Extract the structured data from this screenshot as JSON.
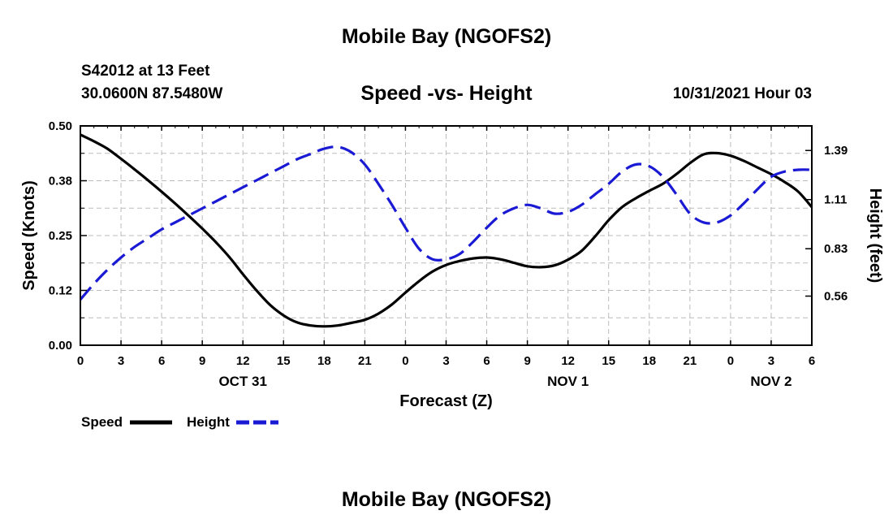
{
  "page": {
    "title": "Mobile Bay (NGOFS2)",
    "station": "S42012 at 13 Feet",
    "coords": "30.0600N  87.5480W",
    "subtitle": "Speed -vs- Height",
    "datetime": "10/31/2021 Hour 03",
    "footer_title": "Mobile Bay (NGOFS2)"
  },
  "legend": {
    "speed_label": "Speed",
    "height_label": "Height"
  },
  "chart_data": {
    "type": "line",
    "xlabel": "Forecast (Z)",
    "ylabel_left": "Speed (Knots)",
    "ylabel_right": "Height (feet)",
    "x_range_hours": [
      0,
      54
    ],
    "x_ticks": [
      {
        "h": 0,
        "label": "0"
      },
      {
        "h": 3,
        "label": "3"
      },
      {
        "h": 6,
        "label": "6"
      },
      {
        "h": 9,
        "label": "9"
      },
      {
        "h": 12,
        "label": "12"
      },
      {
        "h": 15,
        "label": "15"
      },
      {
        "h": 18,
        "label": "18"
      },
      {
        "h": 21,
        "label": "21"
      },
      {
        "h": 24,
        "label": "0"
      },
      {
        "h": 27,
        "label": "3"
      },
      {
        "h": 30,
        "label": "6"
      },
      {
        "h": 33,
        "label": "9"
      },
      {
        "h": 36,
        "label": "12"
      },
      {
        "h": 39,
        "label": "15"
      },
      {
        "h": 42,
        "label": "18"
      },
      {
        "h": 45,
        "label": "21"
      },
      {
        "h": 48,
        "label": "0"
      },
      {
        "h": 51,
        "label": "3"
      },
      {
        "h": 54,
        "label": "6"
      }
    ],
    "date_labels": [
      {
        "h": 12,
        "label": "OCT 31"
      },
      {
        "h": 36,
        "label": "NOV 1"
      },
      {
        "h": 51,
        "label": "NOV 2"
      }
    ],
    "y_left": {
      "min": 0.0,
      "max": 0.5,
      "ticks": [
        "0.00",
        "0.12",
        "0.25",
        "0.38",
        "0.50"
      ]
    },
    "y_right": {
      "min": 0.28,
      "max": 1.53,
      "ticks": [
        "0.56",
        "0.83",
        "1.11",
        "1.39"
      ]
    },
    "grid": true,
    "series": [
      {
        "name": "Speed",
        "axis": "left",
        "color": "#000000",
        "dash": "solid",
        "points": [
          [
            0,
            0.48
          ],
          [
            1,
            0.465
          ],
          [
            2,
            0.448
          ],
          [
            3,
            0.425
          ],
          [
            4,
            0.401
          ],
          [
            5,
            0.376
          ],
          [
            6,
            0.35
          ],
          [
            7,
            0.323
          ],
          [
            8,
            0.295
          ],
          [
            9,
            0.266
          ],
          [
            10,
            0.235
          ],
          [
            11,
            0.201
          ],
          [
            12,
            0.162
          ],
          [
            13,
            0.125
          ],
          [
            14,
            0.092
          ],
          [
            15,
            0.068
          ],
          [
            16,
            0.052
          ],
          [
            17,
            0.045
          ],
          [
            18,
            0.043
          ],
          [
            19,
            0.045
          ],
          [
            20,
            0.051
          ],
          [
            21,
            0.058
          ],
          [
            22,
            0.072
          ],
          [
            23,
            0.093
          ],
          [
            24,
            0.12
          ],
          [
            25,
            0.146
          ],
          [
            26,
            0.168
          ],
          [
            27,
            0.183
          ],
          [
            28,
            0.192
          ],
          [
            29,
            0.198
          ],
          [
            30,
            0.2
          ],
          [
            31,
            0.196
          ],
          [
            32,
            0.188
          ],
          [
            33,
            0.18
          ],
          [
            34,
            0.178
          ],
          [
            35,
            0.182
          ],
          [
            36,
            0.195
          ],
          [
            37,
            0.215
          ],
          [
            38,
            0.248
          ],
          [
            39,
            0.285
          ],
          [
            40,
            0.315
          ],
          [
            41,
            0.335
          ],
          [
            42,
            0.352
          ],
          [
            43,
            0.368
          ],
          [
            44,
            0.39
          ],
          [
            45,
            0.415
          ],
          [
            46,
            0.435
          ],
          [
            47,
            0.438
          ],
          [
            48,
            0.432
          ],
          [
            49,
            0.42
          ],
          [
            50,
            0.405
          ],
          [
            51,
            0.39
          ],
          [
            52,
            0.372
          ],
          [
            53,
            0.35
          ],
          [
            54,
            0.315
          ]
        ]
      },
      {
        "name": "Height",
        "axis": "right",
        "color": "#1a1ad4",
        "dash": "dashed",
        "points": [
          [
            0,
            0.54
          ],
          [
            1,
            0.63
          ],
          [
            2,
            0.71
          ],
          [
            3,
            0.78
          ],
          [
            4,
            0.84
          ],
          [
            5,
            0.89
          ],
          [
            6,
            0.94
          ],
          [
            7,
            0.98
          ],
          [
            8,
            1.02
          ],
          [
            9,
            1.06
          ],
          [
            10,
            1.1
          ],
          [
            11,
            1.14
          ],
          [
            12,
            1.18
          ],
          [
            13,
            1.22
          ],
          [
            14,
            1.26
          ],
          [
            15,
            1.3
          ],
          [
            16,
            1.34
          ],
          [
            17,
            1.37
          ],
          [
            18,
            1.4
          ],
          [
            19,
            1.41
          ],
          [
            20,
            1.38
          ],
          [
            21,
            1.31
          ],
          [
            22,
            1.2
          ],
          [
            23,
            1.08
          ],
          [
            24,
            0.95
          ],
          [
            25,
            0.83
          ],
          [
            26,
            0.77
          ],
          [
            27,
            0.77
          ],
          [
            28,
            0.8
          ],
          [
            29,
            0.87
          ],
          [
            30,
            0.95
          ],
          [
            31,
            1.02
          ],
          [
            32,
            1.06
          ],
          [
            33,
            1.08
          ],
          [
            34,
            1.06
          ],
          [
            35,
            1.03
          ],
          [
            36,
            1.04
          ],
          [
            37,
            1.08
          ],
          [
            38,
            1.14
          ],
          [
            39,
            1.2
          ],
          [
            40,
            1.27
          ],
          [
            41,
            1.31
          ],
          [
            42,
            1.3
          ],
          [
            43,
            1.24
          ],
          [
            44,
            1.14
          ],
          [
            45,
            1.03
          ],
          [
            46,
            0.98
          ],
          [
            47,
            0.98
          ],
          [
            48,
            1.02
          ],
          [
            49,
            1.09
          ],
          [
            50,
            1.17
          ],
          [
            51,
            1.24
          ],
          [
            52,
            1.27
          ],
          [
            53,
            1.28
          ],
          [
            54,
            1.28
          ]
        ]
      }
    ]
  }
}
